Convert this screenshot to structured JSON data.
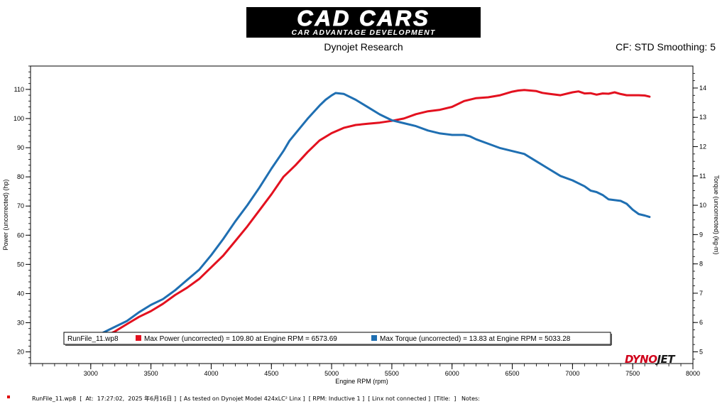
{
  "header": {
    "logo_main": "CAD CARS",
    "logo_sub": "CAR ADVANTAGE DEVELOPMENT",
    "subtitle": "Dynojet Research",
    "cf_info": "CF: STD Smoothing: 5"
  },
  "brand": {
    "part1": "DYNO",
    "part2": "JET"
  },
  "footer": {
    "text": "RunFile_11.wp8  [  At:  17:27:02,  2025 年6月16日 ]  [ As tested on Dynojet Model 424xLC² Linx ]  [ RPM: Inductive 1 ]  [ Linx not connected ]  [Title:  ]   Notes:"
  },
  "colors": {
    "power": "#e3111f",
    "torque": "#1f6fb2"
  },
  "chart_data": {
    "type": "line",
    "xlabel": "Engine RPM (rpm)",
    "ylabel_left": "Power (uncorrected) (hp)",
    "ylabel_right": "Torque (uncorrected) (kg-m)",
    "xlim": [
      2500,
      8000
    ],
    "ylim_left": [
      16,
      118
    ],
    "ylim_right": [
      4.6,
      14.75
    ],
    "x_ticks": [
      3000,
      3500,
      4000,
      4500,
      5000,
      5500,
      6000,
      6500,
      7000,
      7500,
      8000
    ],
    "y_left_ticks": [
      20,
      30,
      40,
      50,
      60,
      70,
      80,
      90,
      100,
      110
    ],
    "y_right_ticks": [
      5,
      6,
      7,
      8,
      9,
      10,
      11,
      12,
      13,
      14
    ],
    "legend": {
      "run": "RunFile_11.wp8",
      "entries": [
        {
          "label": "Max Power (uncorrected) = 109.80 at Engine RPM = 6573.69",
          "series": "power"
        },
        {
          "label": "Max Torque (uncorrected) = 13.83 at Engine RPM = 5033.28",
          "series": "torque"
        }
      ]
    },
    "series": [
      {
        "key": "power",
        "axis": "left",
        "x": [
          3030,
          3100,
          3200,
          3300,
          3400,
          3500,
          3600,
          3700,
          3800,
          3900,
          4000,
          4100,
          4200,
          4300,
          4400,
          4500,
          4600,
          4650,
          4700,
          4800,
          4900,
          5000,
          5100,
          5200,
          5300,
          5400,
          5500,
          5600,
          5700,
          5800,
          5900,
          6000,
          6100,
          6200,
          6300,
          6400,
          6500,
          6550,
          6600,
          6650,
          6700,
          6750,
          6800,
          6900,
          7000,
          7050,
          7100,
          7150,
          7200,
          7250,
          7300,
          7350,
          7400,
          7450,
          7500,
          7550,
          7600,
          7640
        ],
        "y": [
          24,
          25,
          27,
          29.5,
          32,
          34,
          36.5,
          39.5,
          42,
          45,
          49,
          53,
          58,
          63,
          68.5,
          74,
          80,
          82,
          84,
          88.5,
          92.5,
          95,
          96.8,
          97.8,
          98.2,
          98.6,
          99.2,
          100,
          101.5,
          102.5,
          103,
          104,
          106,
          107,
          107.3,
          108,
          109.2,
          109.6,
          109.8,
          109.6,
          109.4,
          108.8,
          108.5,
          108,
          109,
          109.3,
          108.6,
          108.7,
          108.2,
          108.6,
          108.5,
          109,
          108.4,
          108,
          108,
          108,
          107.9,
          107.5
        ]
      },
      {
        "key": "torque",
        "axis": "right",
        "x": [
          3030,
          3100,
          3150,
          3200,
          3300,
          3400,
          3500,
          3600,
          3650,
          3700,
          3800,
          3900,
          4000,
          4100,
          4200,
          4300,
          4400,
          4500,
          4600,
          4650,
          4700,
          4800,
          4900,
          4950,
          5000,
          5033,
          5100,
          5200,
          5300,
          5400,
          5500,
          5600,
          5700,
          5800,
          5900,
          6000,
          6050,
          6100,
          6150,
          6200,
          6300,
          6400,
          6500,
          6600,
          6700,
          6800,
          6900,
          7000,
          7100,
          7150,
          7200,
          7250,
          7300,
          7400,
          7450,
          7500,
          7550,
          7600,
          7640
        ],
        "y": [
          5.45,
          5.65,
          5.75,
          5.85,
          6.05,
          6.35,
          6.6,
          6.8,
          6.95,
          7.1,
          7.45,
          7.8,
          8.3,
          8.85,
          9.45,
          10.0,
          10.6,
          11.25,
          11.85,
          12.2,
          12.45,
          12.95,
          13.4,
          13.6,
          13.75,
          13.83,
          13.8,
          13.6,
          13.35,
          13.1,
          12.9,
          12.8,
          12.7,
          12.55,
          12.45,
          12.4,
          12.4,
          12.4,
          12.35,
          12.25,
          12.1,
          11.95,
          11.85,
          11.75,
          11.5,
          11.25,
          11.0,
          10.85,
          10.65,
          10.5,
          10.45,
          10.35,
          10.2,
          10.15,
          10.05,
          9.85,
          9.7,
          9.65,
          9.6
        ]
      }
    ]
  }
}
